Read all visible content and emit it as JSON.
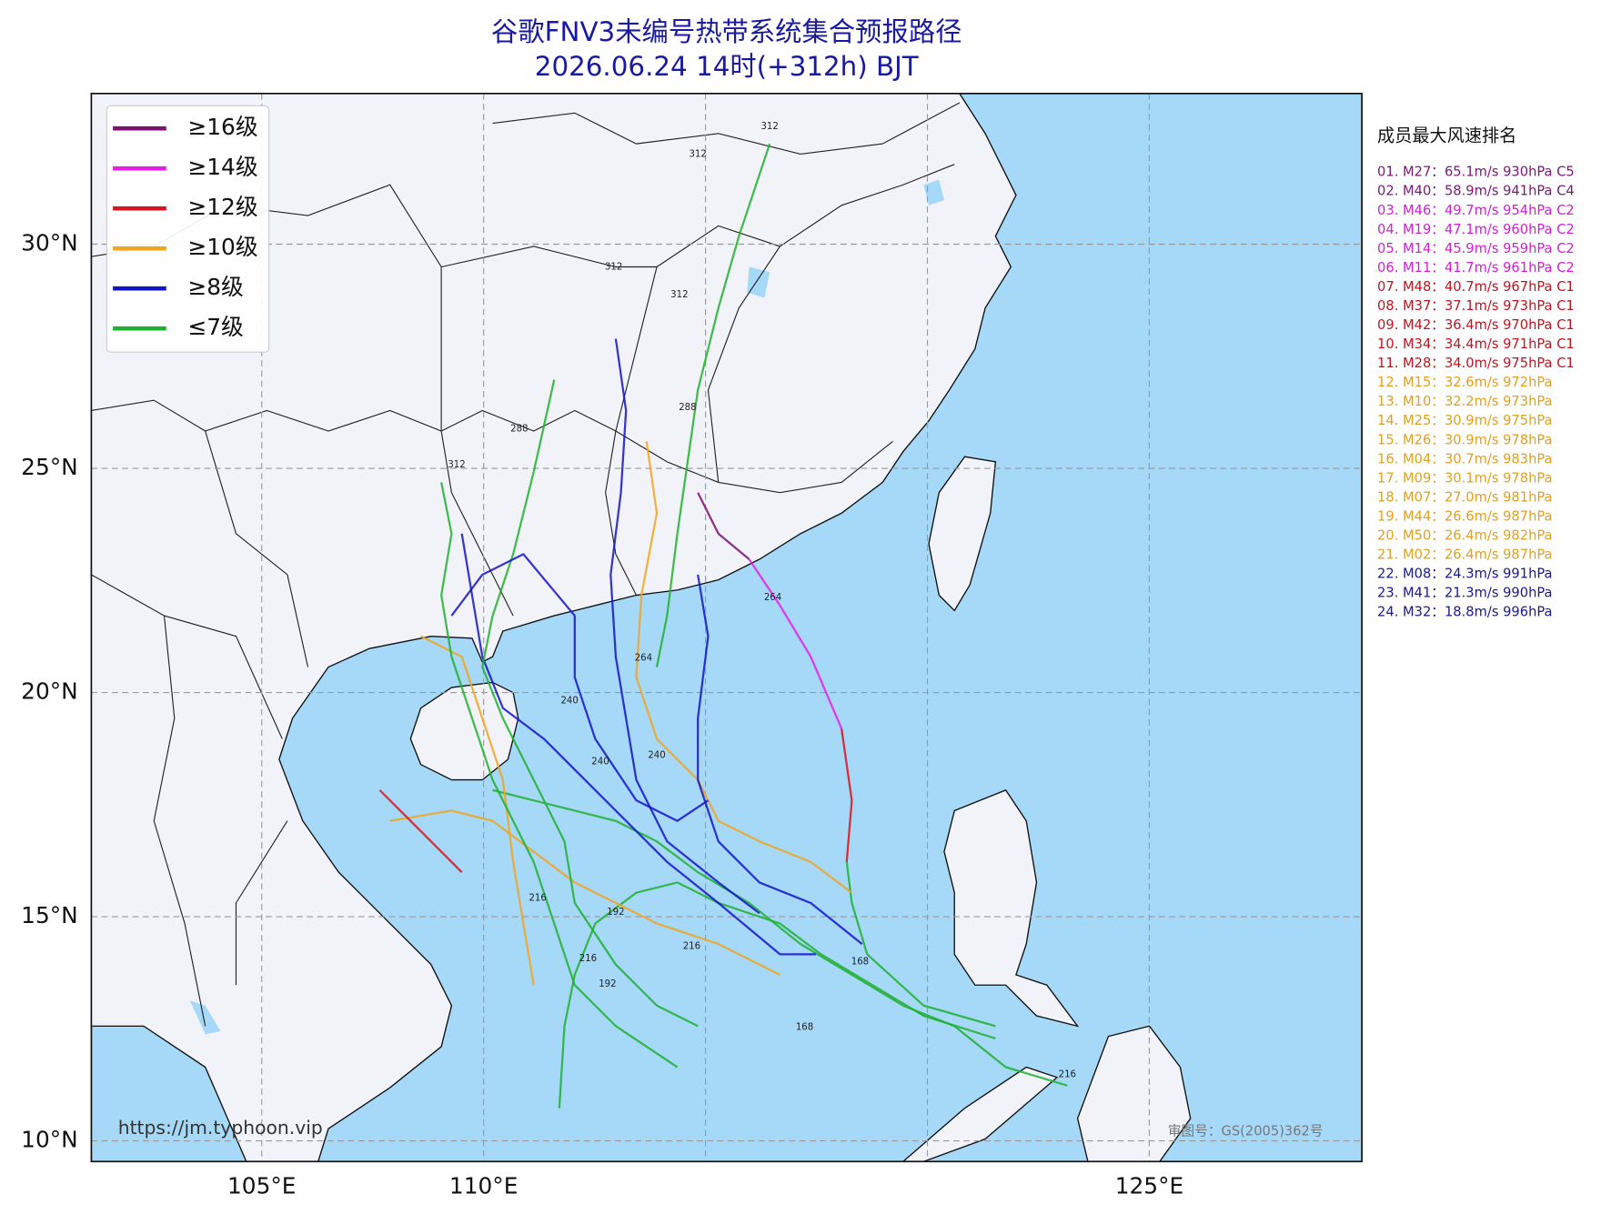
{
  "title": [
    "谷歌FNV3未编号热带系统集合预报路径",
    "2026.06.24 14时(+312h) BJT"
  ],
  "legend": [
    {
      "label": "≥16级",
      "color": "#7b1170"
    },
    {
      "label": "≥14级",
      "color": "#e61ee6"
    },
    {
      "label": "≥12级",
      "color": "#d8141e"
    },
    {
      "label": "≥10级",
      "color": "#f0a51e"
    },
    {
      "label": "≥8级",
      "color": "#1414c8"
    },
    {
      "label": "≤7级",
      "color": "#20b030"
    }
  ],
  "map": {
    "lon_range": [
      101.16,
      129.79
    ],
    "lat_range": [
      9.54,
      33.36
    ],
    "lon_ticks": [
      {
        "value": 105,
        "label": "105°E"
      },
      {
        "value": 110,
        "label": "110°E"
      },
      {
        "value": 125,
        "label": "125°E"
      }
    ],
    "lat_ticks": [
      {
        "value": 10,
        "label": "10°N"
      },
      {
        "value": 15,
        "label": "15°N"
      },
      {
        "value": 20,
        "label": "20°N"
      },
      {
        "value": 25,
        "label": "25°N"
      },
      {
        "value": 30,
        "label": "30°N"
      }
    ],
    "grid_lons": [
      105,
      110,
      115,
      120,
      125
    ],
    "grid_lats": [
      10,
      15,
      20,
      25,
      30
    ]
  },
  "ranking": {
    "title": "成员最大风速排名",
    "items": [
      {
        "text": "01. M27：65.1m/s 930hPa C5",
        "color": "#7a1775"
      },
      {
        "text": "02. M40：58.9m/s 941hPa C4",
        "color": "#7a1775"
      },
      {
        "text": "03. M46：49.7m/s 954hPa C2",
        "color": "#d21ed2"
      },
      {
        "text": "04. M19：47.1m/s 960hPa C2",
        "color": "#d21ed2"
      },
      {
        "text": "05. M14：45.9m/s 959hPa C2",
        "color": "#d21ed2"
      },
      {
        "text": "06. M11：41.7m/s 961hPa C2",
        "color": "#d21ed2"
      },
      {
        "text": "07. M48：40.7m/s 967hPa C1",
        "color": "#c0141e"
      },
      {
        "text": "08. M37：37.1m/s 973hPa C1",
        "color": "#c0141e"
      },
      {
        "text": "09. M42：36.4m/s 970hPa C1",
        "color": "#c0141e"
      },
      {
        "text": "10. M34：34.4m/s 971hPa C1",
        "color": "#c0141e"
      },
      {
        "text": "11. M28：34.0m/s 975hPa C1",
        "color": "#c0141e"
      },
      {
        "text": "12. M15：32.6m/s 972hPa",
        "color": "#e0a020"
      },
      {
        "text": "13. M10：32.2m/s 973hPa",
        "color": "#e0a020"
      },
      {
        "text": "14. M25：30.9m/s 975hPa",
        "color": "#e0a020"
      },
      {
        "text": "15. M26：30.9m/s 978hPa",
        "color": "#e0a020"
      },
      {
        "text": "16. M04：30.7m/s 983hPa",
        "color": "#e0a020"
      },
      {
        "text": "17. M09：30.1m/s 978hPa",
        "color": "#e0a020"
      },
      {
        "text": "18. M07：27.0m/s 981hPa",
        "color": "#e0a020"
      },
      {
        "text": "19. M44：26.6m/s 987hPa",
        "color": "#e0a020"
      },
      {
        "text": "20. M50：26.4m/s 982hPa",
        "color": "#e0a020"
      },
      {
        "text": "21. M02：26.4m/s 987hPa",
        "color": "#e0a020"
      },
      {
        "text": "22. M08：24.3m/s 991hPa",
        "color": "#1a1a8a"
      },
      {
        "text": "23. M41：21.3m/s 990hPa",
        "color": "#1a1a8a"
      },
      {
        "text": "24. M32：18.8m/s 996hPa",
        "color": "#1a1a8a"
      }
    ]
  },
  "track_labels": [
    "312",
    "312",
    "312",
    "312",
    "288",
    "288",
    "264",
    "264",
    "240",
    "240",
    "240",
    "216",
    "216",
    "216",
    "192",
    "192",
    "168",
    "168",
    "216",
    "312"
  ],
  "url": "https://jm.typhoon.vip",
  "approval": "审图号：GS(2005)362号"
}
